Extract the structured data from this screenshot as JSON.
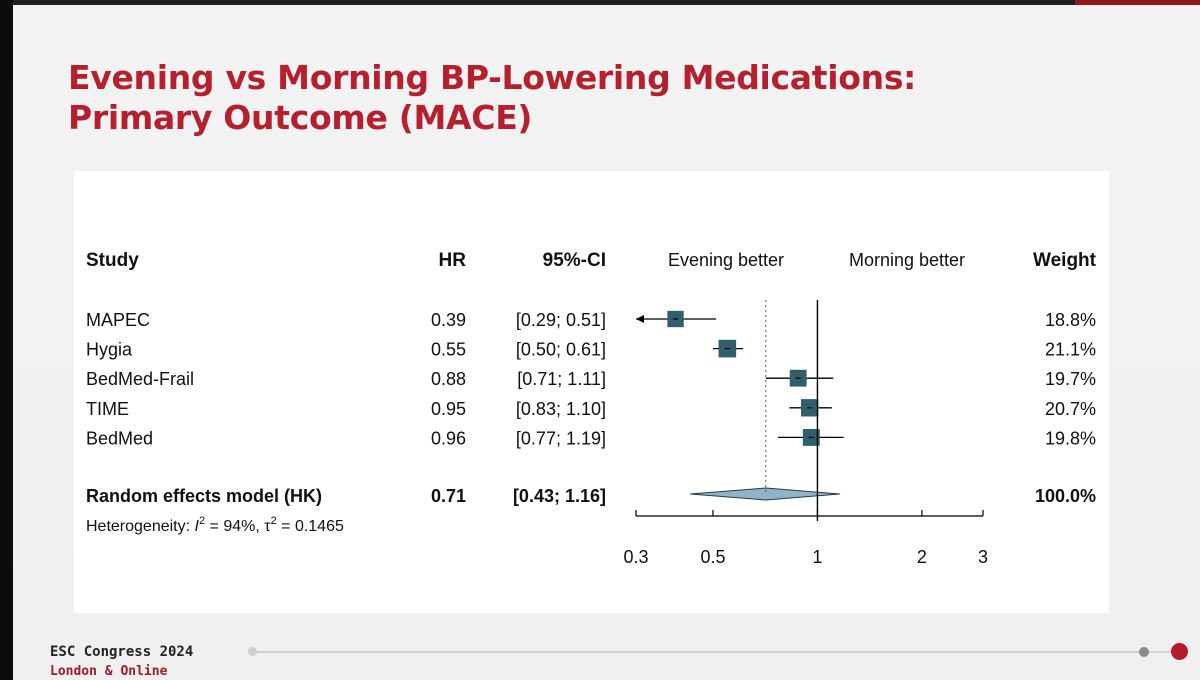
{
  "slide": {
    "title_line1": "Evening vs Morning BP-Lowering Medications:",
    "title_line2": "Primary Outcome (MACE)"
  },
  "chart_data": {
    "type": "forest",
    "scale": "log",
    "headers": {
      "study": "Study",
      "hr": "HR",
      "ci": "95%-CI",
      "left_label": "Evening better",
      "right_label": "Morning better",
      "weight": "Weight"
    },
    "studies": [
      {
        "name": "MAPEC",
        "hr": 0.39,
        "lower": 0.29,
        "upper": 0.51,
        "hr_text": "0.39",
        "ci_text": "[0.29; 0.51]",
        "weight": 18.8,
        "weight_text": "18.8%",
        "arrow_left": true
      },
      {
        "name": "Hygia",
        "hr": 0.55,
        "lower": 0.5,
        "upper": 0.61,
        "hr_text": "0.55",
        "ci_text": "[0.50; 0.61]",
        "weight": 21.1,
        "weight_text": "21.1%"
      },
      {
        "name": "BedMed-Frail",
        "hr": 0.88,
        "lower": 0.71,
        "upper": 1.11,
        "hr_text": "0.88",
        "ci_text": "[0.71; 1.11]",
        "weight": 19.7,
        "weight_text": "19.7%"
      },
      {
        "name": "TIME",
        "hr": 0.95,
        "lower": 0.83,
        "upper": 1.1,
        "hr_text": "0.95",
        "ci_text": "[0.83; 1.10]",
        "weight": 20.7,
        "weight_text": "20.7%"
      },
      {
        "name": "BedMed",
        "hr": 0.96,
        "lower": 0.77,
        "upper": 1.19,
        "hr_text": "0.96",
        "ci_text": "[0.77; 1.19]",
        "weight": 19.8,
        "weight_text": "19.8%"
      }
    ],
    "pooled": {
      "name": "Random effects model (HK)",
      "hr": 0.71,
      "lower": 0.43,
      "upper": 1.16,
      "hr_text": "0.71",
      "ci_text": "[0.43; 1.16]",
      "weight_text": "100.0%"
    },
    "heterogeneity": {
      "prefix": "Heterogeneity: ",
      "i2_symbol": "I",
      "i2_value": " = 94%, ",
      "tau_symbol": "τ",
      "tau_value": " = 0.1465",
      "superscript": "2"
    },
    "x_ticks": [
      0.3,
      0.5,
      1,
      2,
      3
    ],
    "x_tick_labels": [
      "0.3",
      "0.5",
      "1",
      "2",
      "3"
    ],
    "xlim": [
      0.3,
      3
    ],
    "reference_line": 1,
    "colors": {
      "box": "#2f5f6b",
      "diamond": "#8fb4c8",
      "line": "#000000"
    }
  },
  "footer": {
    "congress": "ESC Congress 2024",
    "location": "London & Online"
  },
  "brand": {
    "red": "#b5202e"
  }
}
